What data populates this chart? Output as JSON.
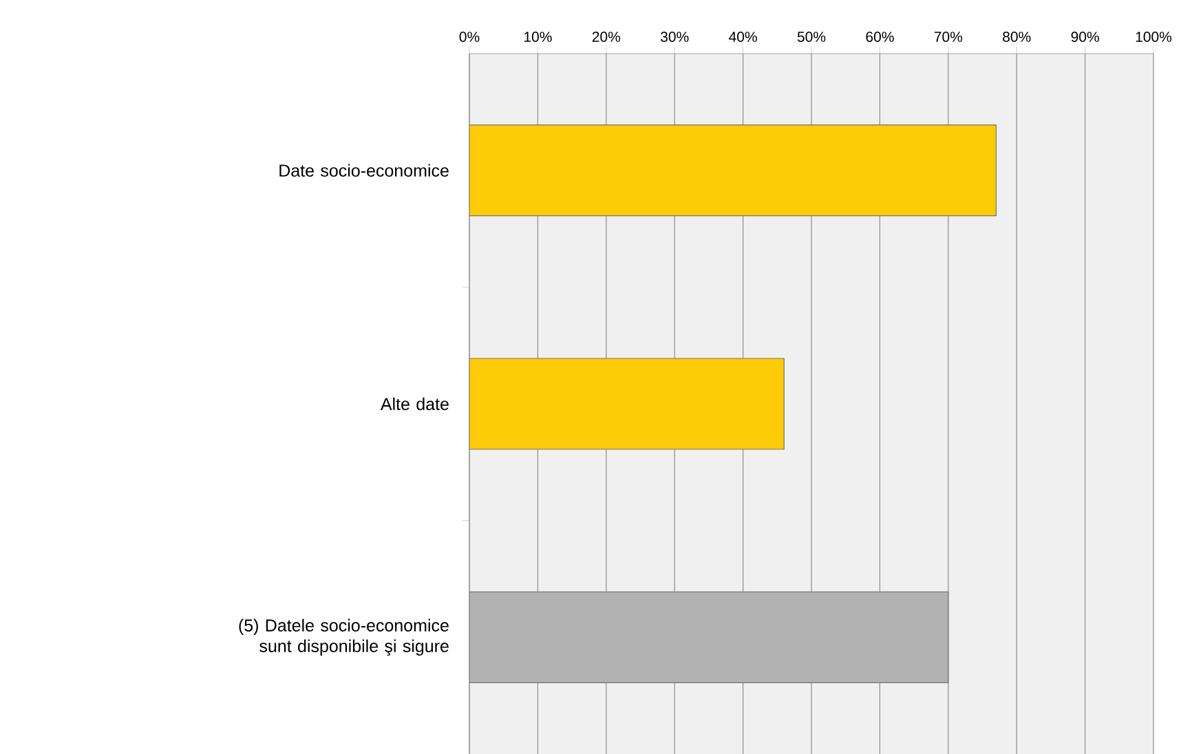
{
  "chart_data": {
    "type": "bar",
    "orientation": "horizontal",
    "categories": [
      "Date socio-economice",
      "Alte date",
      "(5) Datele socio-economice sunt disponibile şi sigure"
    ],
    "values": [
      77,
      46,
      70
    ],
    "colors": [
      "#fdcb08",
      "#fdcb08",
      "#b2b2b2"
    ],
    "xlim": [
      0,
      100
    ],
    "xticks": [
      {
        "value": 0,
        "label": "0%"
      },
      {
        "value": 10,
        "label": "10%"
      },
      {
        "value": 20,
        "label": "20%"
      },
      {
        "value": 30,
        "label": "30%"
      },
      {
        "value": 40,
        "label": "40%"
      },
      {
        "value": 50,
        "label": "50%"
      },
      {
        "value": 60,
        "label": "60%"
      },
      {
        "value": 70,
        "label": "70%"
      },
      {
        "value": 80,
        "label": "80%"
      },
      {
        "value": 90,
        "label": "90%"
      },
      {
        "value": 100,
        "label": "100%"
      }
    ],
    "grid": "x"
  }
}
